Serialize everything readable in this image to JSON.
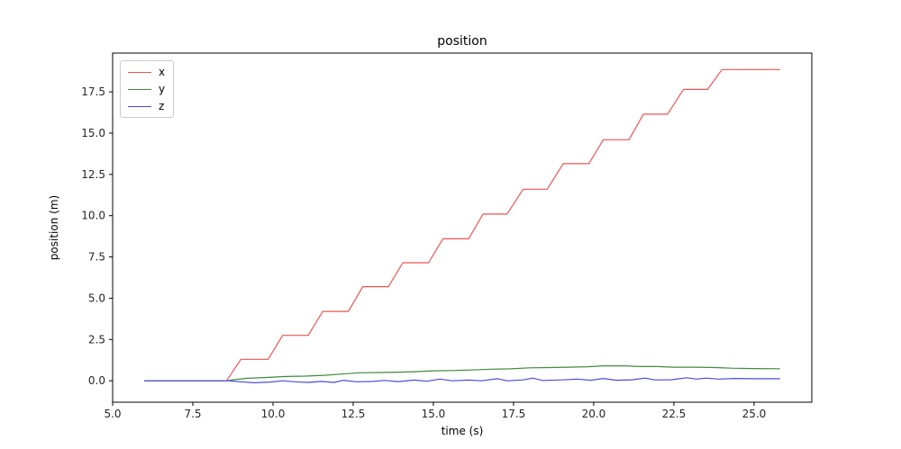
{
  "figure": {
    "title": "position",
    "xlabel": "time (s)",
    "ylabel": "position (m)"
  },
  "chart_data": {
    "type": "line",
    "title": "position",
    "xlabel": "time (s)",
    "ylabel": "position (m)",
    "xlim": [
      5.0,
      26.8
    ],
    "ylim": [
      -1.3,
      19.85
    ],
    "xticks": [
      5.0,
      7.5,
      10.0,
      12.5,
      15.0,
      17.5,
      20.0,
      22.5,
      25.0
    ],
    "yticks": [
      0.0,
      2.5,
      5.0,
      7.5,
      10.0,
      12.5,
      15.0,
      17.5
    ],
    "grid": false,
    "legend_position": "upper left",
    "axis_color": "#000000",
    "tick_label_color": "#262626",
    "series": [
      {
        "name": "x",
        "color": "#f25353",
        "description": "staircase: rises ~1.45 m per step every ~1.25 s starting at t=8.55 s, final value 18.85 m",
        "points": [
          [
            6.0,
            0
          ],
          [
            8.55,
            0
          ],
          [
            9.0,
            1.3
          ],
          [
            9.85,
            1.3
          ],
          [
            10.3,
            2.75
          ],
          [
            11.1,
            2.75
          ],
          [
            11.55,
            4.2
          ],
          [
            12.35,
            4.2
          ],
          [
            12.8,
            5.7
          ],
          [
            13.6,
            5.7
          ],
          [
            14.05,
            7.15
          ],
          [
            14.85,
            7.15
          ],
          [
            15.3,
            8.6
          ],
          [
            16.1,
            8.6
          ],
          [
            16.55,
            10.1
          ],
          [
            17.3,
            10.1
          ],
          [
            17.8,
            11.6
          ],
          [
            18.55,
            11.6
          ],
          [
            19.05,
            13.15
          ],
          [
            19.85,
            13.15
          ],
          [
            20.3,
            14.6
          ],
          [
            21.1,
            14.6
          ],
          [
            21.55,
            16.15
          ],
          [
            22.3,
            16.15
          ],
          [
            22.8,
            17.65
          ],
          [
            23.55,
            17.65
          ],
          [
            24.0,
            18.85
          ],
          [
            25.8,
            18.85
          ]
        ]
      },
      {
        "name": "y",
        "color": "#3c8c3c",
        "description": "slow drift from 0 up to ~0.9 m around t=20.5 s, easing back to ~0.73 m",
        "points": [
          [
            6.0,
            0
          ],
          [
            8.55,
            0
          ],
          [
            8.8,
            0.07
          ],
          [
            9.2,
            0.15
          ],
          [
            9.8,
            0.2
          ],
          [
            10.4,
            0.26
          ],
          [
            11.0,
            0.28
          ],
          [
            11.6,
            0.33
          ],
          [
            12.1,
            0.4
          ],
          [
            12.7,
            0.48
          ],
          [
            13.3,
            0.5
          ],
          [
            13.9,
            0.52
          ],
          [
            14.4,
            0.55
          ],
          [
            15.0,
            0.6
          ],
          [
            15.6,
            0.62
          ],
          [
            16.2,
            0.65
          ],
          [
            16.8,
            0.7
          ],
          [
            17.4,
            0.72
          ],
          [
            18.0,
            0.78
          ],
          [
            18.6,
            0.8
          ],
          [
            19.2,
            0.82
          ],
          [
            19.8,
            0.85
          ],
          [
            20.3,
            0.9
          ],
          [
            21.0,
            0.9
          ],
          [
            21.4,
            0.86
          ],
          [
            22.0,
            0.86
          ],
          [
            22.5,
            0.82
          ],
          [
            23.2,
            0.82
          ],
          [
            23.8,
            0.8
          ],
          [
            24.3,
            0.76
          ],
          [
            25.0,
            0.74
          ],
          [
            25.8,
            0.73
          ]
        ]
      },
      {
        "name": "z",
        "color": "#4b4be0",
        "description": "noisy, hovers near 0 m (between -0.12 and +0.18)",
        "points": [
          [
            6.0,
            0
          ],
          [
            8.6,
            0
          ],
          [
            9.0,
            -0.06
          ],
          [
            9.4,
            -0.12
          ],
          [
            9.9,
            -0.08
          ],
          [
            10.3,
            0.0
          ],
          [
            10.7,
            -0.06
          ],
          [
            11.1,
            -0.1
          ],
          [
            11.5,
            -0.04
          ],
          [
            11.9,
            -0.1
          ],
          [
            12.2,
            0.03
          ],
          [
            12.6,
            -0.06
          ],
          [
            13.1,
            -0.04
          ],
          [
            13.5,
            0.02
          ],
          [
            13.9,
            -0.05
          ],
          [
            14.4,
            0.04
          ],
          [
            14.8,
            -0.03
          ],
          [
            15.2,
            0.1
          ],
          [
            15.6,
            0.0
          ],
          [
            16.1,
            0.04
          ],
          [
            16.5,
            0.0
          ],
          [
            17.0,
            0.12
          ],
          [
            17.3,
            0.0
          ],
          [
            17.8,
            0.05
          ],
          [
            18.1,
            0.16
          ],
          [
            18.4,
            0.02
          ],
          [
            19.0,
            0.05
          ],
          [
            19.5,
            0.1
          ],
          [
            19.9,
            0.03
          ],
          [
            20.3,
            0.14
          ],
          [
            20.7,
            0.03
          ],
          [
            21.2,
            0.06
          ],
          [
            21.6,
            0.16
          ],
          [
            21.9,
            0.05
          ],
          [
            22.4,
            0.06
          ],
          [
            22.9,
            0.18
          ],
          [
            23.2,
            0.1
          ],
          [
            23.5,
            0.16
          ],
          [
            23.9,
            0.1
          ],
          [
            24.4,
            0.14
          ],
          [
            24.9,
            0.12
          ],
          [
            25.8,
            0.12
          ]
        ]
      }
    ]
  }
}
